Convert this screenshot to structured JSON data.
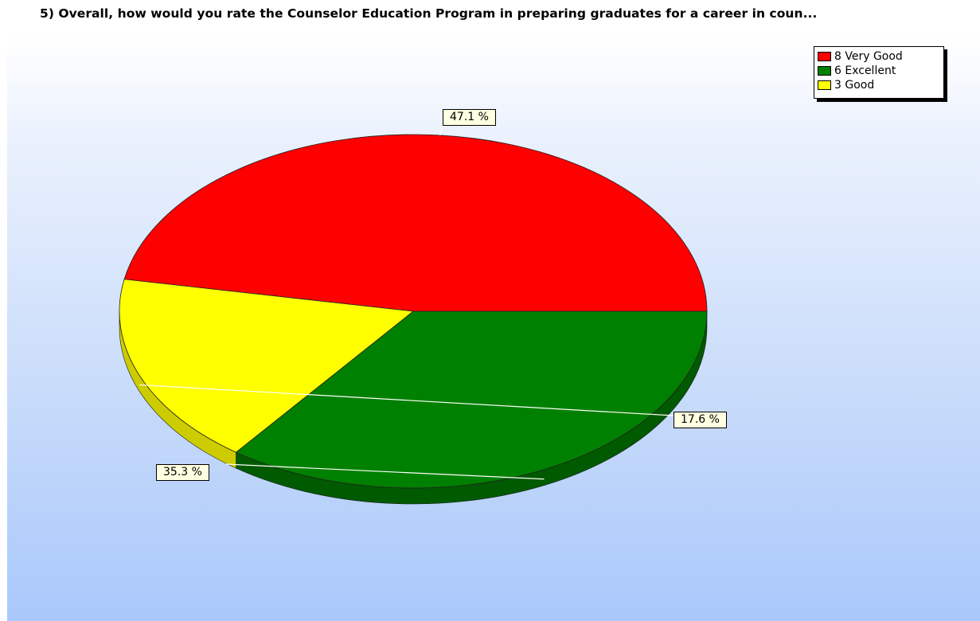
{
  "chart_data": {
    "type": "pie",
    "title": "5) Overall, how would you rate the Counselor Education Program in preparing graduates for a career in coun...",
    "slices": [
      {
        "label": "8 Very Good",
        "count": 8,
        "percent": 47.1,
        "percent_label": "47.1 %",
        "color": "#ff0000",
        "side_color": "#c00000"
      },
      {
        "label": "6 Excellent",
        "count": 6,
        "percent": 35.3,
        "percent_label": "35.3 %",
        "color": "#008000",
        "side_color": "#005a00"
      },
      {
        "label": "3 Good",
        "count": 3,
        "percent": 17.6,
        "percent_label": "17.6 %",
        "color": "#ffff00",
        "side_color": "#cccc00"
      }
    ],
    "legend": {
      "position": "top-right"
    },
    "style": "3d-tilted-pie"
  }
}
